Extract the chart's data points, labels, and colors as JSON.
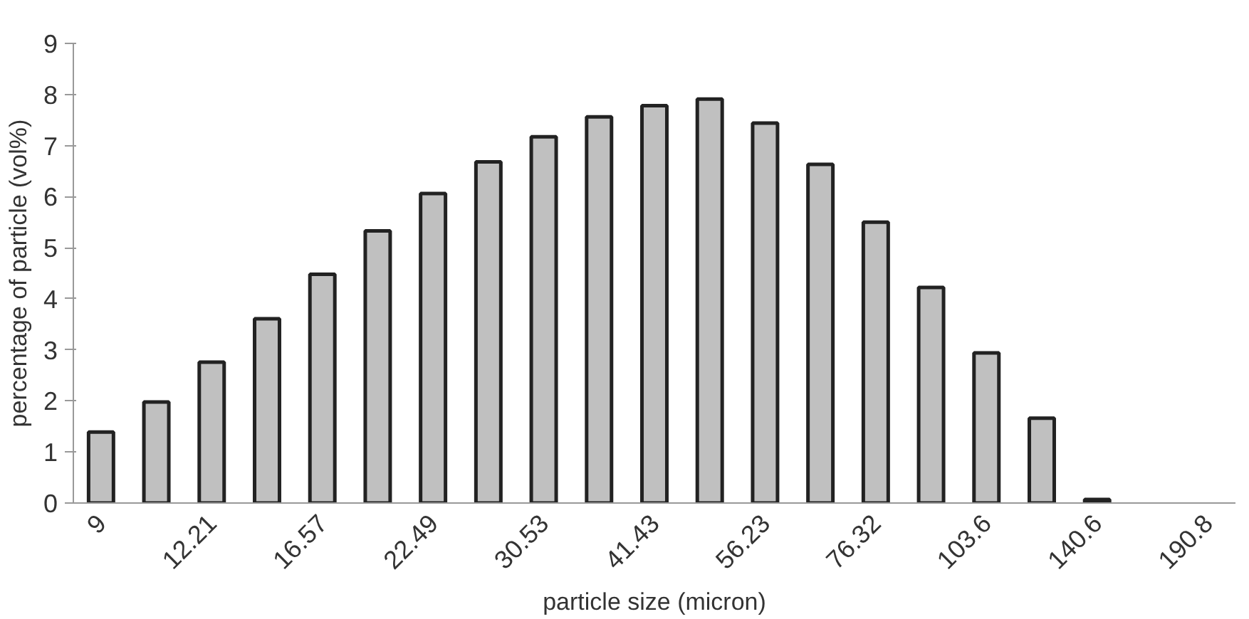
{
  "chart_data": {
    "type": "bar",
    "xlabel": "particle size (micron)",
    "ylabel": "percentage of particle (vol%)",
    "categories": [
      "9",
      null,
      "12.21",
      null,
      "16.57",
      null,
      "22.49",
      null,
      "30.53",
      null,
      "41.43",
      null,
      "56.23",
      null,
      "76.32",
      null,
      "103.6",
      null,
      "140.6",
      null,
      "190.8"
    ],
    "values": [
      1.39,
      1.98,
      2.76,
      3.61,
      4.48,
      5.33,
      6.06,
      6.68,
      7.17,
      7.56,
      7.78,
      7.91,
      7.44,
      6.63,
      5.5,
      4.22,
      2.94,
      1.66,
      0.07,
      null,
      null
    ],
    "color": "#c0c0c0",
    "ylim": [
      0,
      9
    ],
    "yticks": [
      0,
      1,
      2,
      3,
      4,
      5,
      6,
      7,
      8,
      9
    ],
    "grid": false
  }
}
